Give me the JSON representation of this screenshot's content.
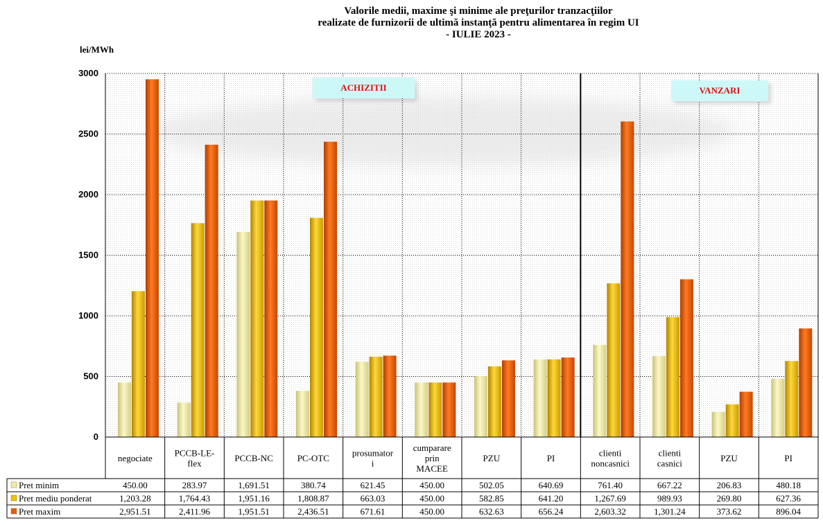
{
  "title_lines": [
    "Valorile medii, maxime şi minime ale preţurilor tranzacţiilor",
    "realizate de furnizorii de ultimă instanţă pentru alimentarea în regim UI",
    "- IULIE 2023 -"
  ],
  "y_unit": "lei/MWh",
  "annotations": {
    "achizitii": "ACHIZITII",
    "vanzari": "VANZARI"
  },
  "chart_data": {
    "type": "bar",
    "title": "Valorile medii, maxime şi minime ale preţurilor tranzacţiilor realizate de furnizorii de ultimă instanţă pentru alimentarea în regim UI - IULIE 2023 -",
    "ylabel": "lei/MWh",
    "ylim": [
      0,
      3000
    ],
    "yticks": [
      0,
      500,
      1000,
      1500,
      2000,
      2500,
      3000
    ],
    "grid": true,
    "legend": "table-left",
    "categories": [
      [
        "negociate"
      ],
      [
        "PCCB-LE-",
        "flex"
      ],
      [
        "PCCB-NC"
      ],
      [
        "PC-OTC"
      ],
      [
        "prosumator",
        "i"
      ],
      [
        "cumparare",
        "prin",
        "MACEE"
      ],
      [
        "PZU"
      ],
      [
        "PI"
      ],
      [
        "clienti",
        "noncasnici"
      ],
      [
        "clienti",
        "casnici"
      ],
      [
        "PZU"
      ],
      [
        "PI"
      ]
    ],
    "groups": [
      {
        "label": "ACHIZITII",
        "from": 0,
        "to": 7
      },
      {
        "label": "VANZARI",
        "from": 8,
        "to": 11
      }
    ],
    "series": [
      {
        "name": "Pret minim",
        "color": "#f2eea6",
        "values": [
          450.0,
          283.97,
          1691.51,
          380.74,
          621.45,
          450.0,
          502.05,
          640.69,
          761.4,
          667.22,
          206.83,
          480.18
        ],
        "labels": [
          "450.00",
          "283.97",
          "1,691.51",
          "380.74",
          "621.45",
          "450.00",
          "502.05",
          "640.69",
          "761.40",
          "667.22",
          "206.83",
          "480.18"
        ]
      },
      {
        "name": "Pret mediu ponderat",
        "color": "#f2c200",
        "values": [
          1203.28,
          1764.43,
          1951.16,
          1808.87,
          663.03,
          450.0,
          582.85,
          641.2,
          1267.69,
          989.93,
          269.8,
          627.36
        ],
        "labels": [
          "1,203.28",
          "1,764.43",
          "1,951.16",
          "1,808.87",
          "663.03",
          "450.00",
          "582.85",
          "641.20",
          "1,267.69",
          "989.93",
          "269.80",
          "627.36"
        ]
      },
      {
        "name": "Pret maxim",
        "color": "#e85a0c",
        "values": [
          2951.51,
          2411.96,
          1951.51,
          2436.51,
          671.61,
          450.0,
          632.63,
          656.24,
          2603.32,
          1301.24,
          373.62,
          896.04
        ],
        "labels": [
          "2,951.51",
          "2,411.96",
          "1,951.51",
          "2,436.51",
          "671.61",
          "450.00",
          "632.63",
          "656.24",
          "2,603.32",
          "1,301.24",
          "373.62",
          "896.04"
        ]
      }
    ]
  }
}
